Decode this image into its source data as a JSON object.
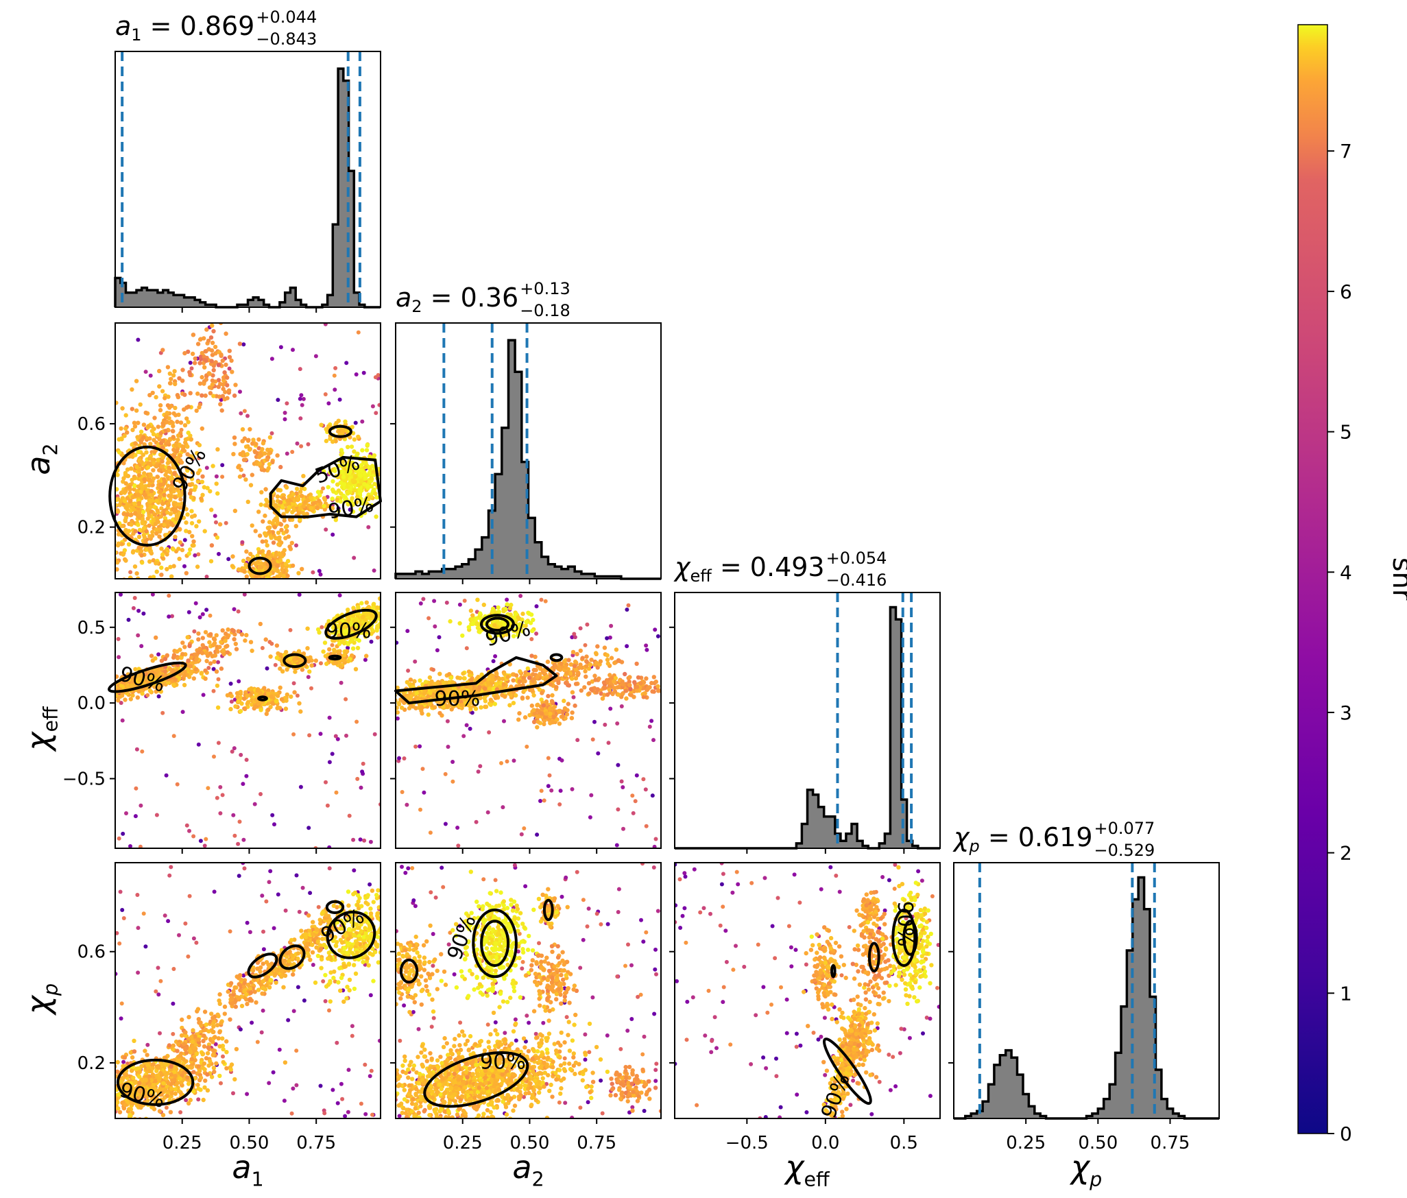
{
  "chart_data": {
    "type": "scatter",
    "title": "",
    "parameters": [
      {
        "key": "a1",
        "sym": "a",
        "sub": "1",
        "median": "0.869",
        "plus": "+0.044",
        "minus": "−0.843",
        "range": [
          0.0,
          0.99
        ],
        "ticks": [
          "0.25",
          "0.50",
          "0.75"
        ],
        "tick_values": [
          0.25,
          0.5,
          0.75
        ],
        "lines": [
          0.026,
          0.869,
          0.913
        ]
      },
      {
        "key": "a2",
        "sym": "a",
        "sub": "2",
        "median": "0.36",
        "plus": "+0.13",
        "minus": "−0.18",
        "range": [
          0.0,
          0.99
        ],
        "ticks": [
          "0.25",
          "0.50",
          "0.75"
        ],
        "tick_values": [
          0.25,
          0.5,
          0.75
        ],
        "lines": [
          0.18,
          0.36,
          0.49
        ]
      },
      {
        "key": "chi_eff",
        "sym": "χ",
        "sub": "eff",
        "median": "0.493",
        "plus": "+0.054",
        "minus": "−0.416",
        "range": [
          -0.96,
          0.73
        ],
        "ticks": [
          "−0.5",
          "0.0",
          "0.5"
        ],
        "tick_values": [
          -0.5,
          0.0,
          0.5
        ],
        "lines": [
          0.077,
          0.493,
          0.547
        ]
      },
      {
        "key": "chi_p",
        "sym": "χ",
        "sub": "p",
        "median": "0.619",
        "plus": "+0.077",
        "minus": "−0.529",
        "range": [
          0.0,
          0.92
        ],
        "ticks": [
          "0.25",
          "0.50",
          "0.75"
        ],
        "tick_values": [
          0.25,
          0.5,
          0.75
        ],
        "lines": [
          0.09,
          0.619,
          0.696
        ]
      }
    ],
    "row_ticks": [
      {
        "row": 1,
        "labels": [
          "0.2",
          "0.6"
        ],
        "values": [
          0.2,
          0.6
        ]
      },
      {
        "row": 2,
        "labels": [
          "−0.5",
          "0.0",
          "0.5"
        ],
        "values": [
          -0.5,
          0.0,
          0.5
        ]
      },
      {
        "row": 3,
        "labels": [
          "0.2",
          "0.6"
        ],
        "values": [
          0.2,
          0.6
        ]
      }
    ],
    "histograms": [
      {
        "param": "a1",
        "edges": [
          0.0,
          0.99
        ],
        "counts": [
          0.12,
          0.1,
          0.06,
          0.06,
          0.07,
          0.08,
          0.07,
          0.07,
          0.06,
          0.07,
          0.06,
          0.05,
          0.05,
          0.04,
          0.04,
          0.03,
          0.02,
          0.01,
          0.01,
          0.0,
          0.0,
          0.0,
          0.0,
          0.01,
          0.01,
          0.03,
          0.04,
          0.03,
          0.01,
          0.0,
          0.0,
          0.02,
          0.06,
          0.08,
          0.03,
          0.01,
          0.0,
          0.0,
          0.0,
          0.01,
          0.05,
          0.34,
          0.98,
          0.93,
          0.56,
          0.06,
          0.01,
          0.0,
          0.0,
          0.0
        ]
      },
      {
        "param": "a2",
        "edges": [
          0.0,
          0.99
        ],
        "counts": [
          0.02,
          0.02,
          0.02,
          0.03,
          0.02,
          0.03,
          0.03,
          0.04,
          0.04,
          0.05,
          0.06,
          0.08,
          0.12,
          0.17,
          0.28,
          0.43,
          0.62,
          0.98,
          0.85,
          0.48,
          0.25,
          0.15,
          0.09,
          0.06,
          0.05,
          0.04,
          0.05,
          0.03,
          0.02,
          0.02,
          0.01,
          0.01,
          0.01,
          0.01,
          0.0,
          0.0,
          0.0,
          0.0,
          0.0,
          0.0
        ]
      },
      {
        "param": "chi_eff",
        "edges": [
          -0.96,
          0.73
        ],
        "counts": [
          0.0,
          0.0,
          0.0,
          0.0,
          0.0,
          0.0,
          0.0,
          0.0,
          0.0,
          0.0,
          0.0,
          0.0,
          0.0,
          0.0,
          0.0,
          0.0,
          0.0,
          0.0,
          0.0,
          0.0,
          0.0,
          0.0,
          0.02,
          0.1,
          0.24,
          0.22,
          0.17,
          0.13,
          0.13,
          0.06,
          0.03,
          0.06,
          0.1,
          0.03,
          0.01,
          0.0,
          0.0,
          0.02,
          0.06,
          0.99,
          0.94,
          0.2,
          0.03,
          0.01,
          0.0,
          0.0,
          0.0,
          0.0
        ]
      },
      {
        "param": "chi_p",
        "edges": [
          0.0,
          0.92
        ],
        "counts": [
          0.0,
          0.0,
          0.01,
          0.02,
          0.03,
          0.07,
          0.14,
          0.22,
          0.26,
          0.28,
          0.25,
          0.18,
          0.1,
          0.05,
          0.02,
          0.01,
          0.0,
          0.0,
          0.0,
          0.0,
          0.0,
          0.0,
          0.0,
          0.01,
          0.02,
          0.04,
          0.08,
          0.14,
          0.27,
          0.46,
          0.69,
          0.9,
          0.99,
          0.86,
          0.5,
          0.2,
          0.08,
          0.04,
          0.02,
          0.01,
          0.0,
          0.0,
          0.0,
          0.0,
          0.0,
          0.0
        ]
      }
    ],
    "contour_levels": [
      "50%",
      "90%"
    ],
    "contour_labels": [
      {
        "panel": "a1-a2",
        "text": "90%"
      },
      {
        "panel": "a1-a2",
        "text": "50%"
      },
      {
        "panel": "a1-a2",
        "text": "90%"
      },
      {
        "panel": "a1-chi_eff",
        "text": "90%"
      },
      {
        "panel": "a1-chi_eff",
        "text": "90%"
      },
      {
        "panel": "a2-chi_eff",
        "text": "90%"
      },
      {
        "panel": "a2-chi_eff",
        "text": "90%"
      },
      {
        "panel": "a1-chi_p",
        "text": "90%"
      },
      {
        "panel": "a1-chi_p",
        "text": "90%"
      },
      {
        "panel": "a2-chi_p",
        "text": "90%"
      },
      {
        "panel": "a2-chi_p",
        "text": "90%"
      },
      {
        "panel": "chi_eff-chi_p",
        "text": "90%"
      },
      {
        "panel": "chi_eff-chi_p",
        "text": "90%"
      }
    ],
    "colorbar": {
      "label": "snr",
      "min": 0,
      "max": 7.9,
      "ticks": [
        "0",
        "1",
        "2",
        "3",
        "4",
        "5",
        "6",
        "7"
      ],
      "tick_values": [
        0,
        1,
        2,
        3,
        4,
        5,
        6,
        7
      ],
      "colormap": "plasma"
    },
    "colors": {
      "histogram_fill": "#808080",
      "quantile_line": "#1f77b4",
      "contour": "#000000"
    }
  }
}
